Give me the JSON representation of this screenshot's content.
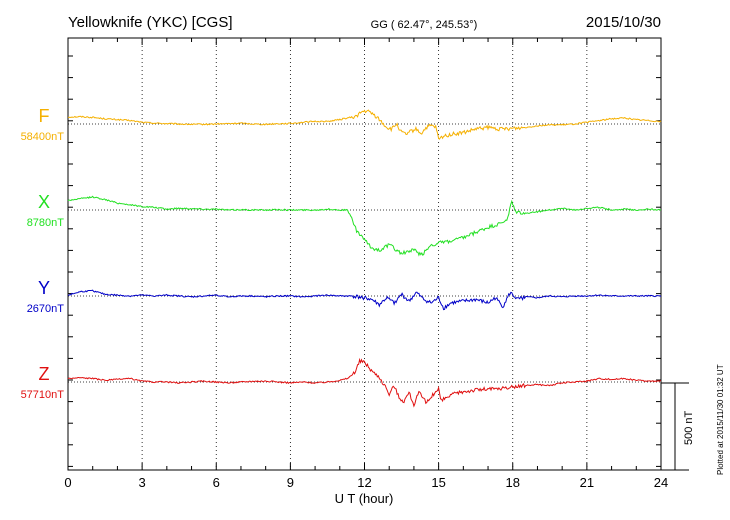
{
  "header": {
    "station": "Yellowknife (YKC)  [CGS]",
    "coords": "GG ( 62.47°, 245.53°)",
    "date": "2015/10/30"
  },
  "footer": {
    "plotted": "Plotted at 2015/11/30 01:32 UT",
    "scale_label": "500 nT"
  },
  "chart_data": {
    "type": "line",
    "xlabel": "U T (hour)",
    "xlim": [
      0,
      24
    ],
    "xticks": [
      "0",
      "3",
      "6",
      "9",
      "12",
      "15",
      "18",
      "21",
      "24"
    ],
    "grid": "dotted",
    "scale_bar_nT": 500,
    "series": [
      {
        "name": "F",
        "baseline_label": "58400nT",
        "color": "#f5b000",
        "x": [
          0,
          0.5,
          1,
          1.5,
          2,
          2.5,
          3,
          3.5,
          4,
          4.5,
          5,
          5.5,
          6,
          6.5,
          7,
          7.5,
          8,
          8.5,
          9,
          9.5,
          10,
          10.5,
          11,
          11.3,
          11.6,
          11.9,
          12.1,
          12.3,
          12.5,
          12.7,
          12.9,
          13.1,
          13.3,
          13.5,
          13.7,
          13.9,
          14.1,
          14.3,
          14.5,
          14.7,
          14.9,
          15.0,
          15.2,
          15.5,
          16,
          16.5,
          17,
          17.5,
          18,
          18.5,
          19,
          19.5,
          20,
          20.5,
          21,
          21.5,
          22,
          22.5,
          23,
          23.5,
          24
        ],
        "values": [
          40,
          42,
          38,
          30,
          25,
          20,
          10,
          5,
          2,
          0,
          -2,
          -2,
          0,
          2,
          5,
          0,
          -2,
          2,
          3,
          10,
          15,
          15,
          25,
          35,
          40,
          70,
          75,
          60,
          40,
          10,
          -20,
          -30,
          0,
          -50,
          -60,
          -40,
          -30,
          -55,
          -20,
          -10,
          -20,
          -90,
          -70,
          -60,
          -50,
          -30,
          -20,
          -30,
          -25,
          -20,
          -10,
          -5,
          -5,
          0,
          10,
          20,
          30,
          35,
          25,
          20,
          15
        ]
      },
      {
        "name": "X",
        "baseline_label": "8780nT",
        "color": "#22e022",
        "x": [
          0,
          0.5,
          1,
          1.5,
          2,
          2.5,
          3,
          3.5,
          4,
          4.5,
          5,
          5.5,
          6,
          6.5,
          7,
          7.5,
          8,
          8.5,
          9,
          9.5,
          10,
          10.5,
          11,
          11.3,
          11.5,
          11.7,
          11.9,
          12.1,
          12.3,
          12.6,
          13,
          13.5,
          14,
          14.3,
          14.7,
          15,
          15.5,
          16,
          16.5,
          17,
          17.5,
          17.8,
          17.95,
          18.1,
          18.5,
          19,
          19.5,
          20,
          20.5,
          21,
          21.5,
          22,
          22.5,
          23,
          23.5,
          24
        ],
        "values": [
          55,
          65,
          75,
          60,
          40,
          30,
          20,
          15,
          5,
          10,
          8,
          5,
          5,
          0,
          2,
          0,
          0,
          2,
          0,
          0,
          0,
          5,
          0,
          0,
          -50,
          -130,
          -150,
          -190,
          -220,
          -230,
          -200,
          -250,
          -230,
          -260,
          -200,
          -190,
          -180,
          -160,
          -130,
          -100,
          -80,
          -50,
          50,
          -10,
          -20,
          -10,
          0,
          10,
          0,
          10,
          15,
          0,
          5,
          0,
          5,
          0
        ]
      },
      {
        "name": "Y",
        "baseline_label": "2670nT",
        "color": "#0000c8",
        "x": [
          0,
          0.5,
          1,
          1.5,
          2,
          2.5,
          3,
          3.5,
          4,
          4.5,
          5,
          5.5,
          6,
          6.5,
          7,
          7.5,
          8,
          8.5,
          9,
          9.5,
          10,
          10.5,
          11,
          11.5,
          12,
          12.3,
          12.6,
          12.9,
          13.2,
          13.5,
          13.8,
          14.1,
          14.4,
          14.7,
          15,
          15.2,
          15.5,
          16,
          16.5,
          17,
          17.3,
          17.6,
          17.9,
          18.2,
          18.5,
          19,
          19.5,
          20,
          20.5,
          21,
          21.5,
          22,
          22.5,
          23,
          23.5,
          24
        ],
        "values": [
          5,
          25,
          30,
          10,
          5,
          0,
          5,
          0,
          5,
          0,
          -5,
          0,
          5,
          -5,
          0,
          0,
          -5,
          0,
          0,
          -5,
          0,
          5,
          0,
          0,
          -10,
          -20,
          -50,
          -10,
          -40,
          10,
          -30,
          20,
          -20,
          -40,
          -10,
          -70,
          -40,
          -30,
          -20,
          -40,
          -10,
          -60,
          20,
          -20,
          -5,
          -10,
          0,
          -5,
          0,
          0,
          5,
          0,
          0,
          0,
          0,
          0
        ]
      },
      {
        "name": "Z",
        "baseline_label": "57710nT",
        "color": "#e01010",
        "x": [
          0,
          0.5,
          1,
          1.5,
          2,
          2.5,
          3,
          3.5,
          4,
          4.5,
          5,
          5.5,
          6,
          6.5,
          7,
          7.5,
          8,
          8.5,
          9,
          9.5,
          10,
          10.5,
          11,
          11.3,
          11.6,
          11.8,
          12.0,
          12.2,
          12.4,
          12.6,
          12.8,
          13.0,
          13.2,
          13.4,
          13.6,
          13.8,
          14.0,
          14.2,
          14.5,
          14.8,
          15.0,
          15.1,
          15.3,
          15.6,
          16,
          16.5,
          17,
          17.5,
          18,
          18.5,
          19,
          19.5,
          20,
          20.5,
          21,
          21.5,
          22,
          22.5,
          23,
          23.5,
          24
        ],
        "values": [
          20,
          25,
          20,
          10,
          15,
          20,
          5,
          0,
          0,
          -5,
          0,
          5,
          0,
          -5,
          0,
          5,
          5,
          0,
          -5,
          0,
          -5,
          0,
          10,
          20,
          50,
          120,
          115,
          80,
          50,
          30,
          -20,
          -70,
          -20,
          -90,
          -110,
          -60,
          -130,
          -60,
          -120,
          -70,
          -40,
          -110,
          -90,
          -70,
          -55,
          -45,
          -40,
          -40,
          -30,
          -20,
          -15,
          -20,
          -5,
          0,
          5,
          20,
          15,
          20,
          10,
          5,
          5
        ]
      }
    ]
  }
}
